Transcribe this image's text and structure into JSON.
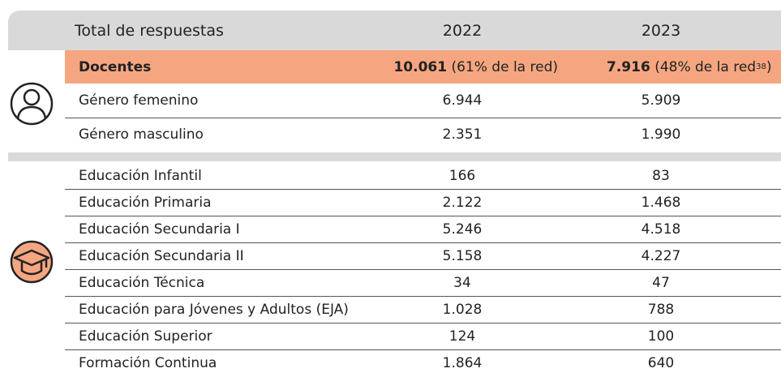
{
  "header": {
    "title": "Total de respuestas",
    "col1": "2022",
    "col2": "2023"
  },
  "highlight": {
    "label": "Docentes",
    "y2022": {
      "bold": "10.061",
      "rest": "(61% de la red)"
    },
    "y2023": {
      "bold": "7.916",
      "rest": "(48% de la red",
      "note": "38",
      "close": ")"
    }
  },
  "gender": [
    [
      "Género femenino",
      "6.944",
      "5.909"
    ],
    [
      "Género masculino",
      "2.351",
      "1.990"
    ]
  ],
  "education": [
    [
      "Educación Infantil",
      "166",
      "83"
    ],
    [
      "Educación Primaria",
      "2.122",
      "1.468"
    ],
    [
      "Educación Secundaria I",
      "5.246",
      "4.518"
    ],
    [
      "Educación Secundaria II",
      "5.158",
      "4.227"
    ],
    [
      "Educación Técnica",
      "34",
      "47"
    ],
    [
      "Educación para Jóvenes y Adultos (EJA)",
      "1.028",
      "788"
    ],
    [
      "Educación Superior",
      "124",
      "100"
    ],
    [
      "Formación Continua",
      "1.864",
      "640"
    ]
  ]
}
